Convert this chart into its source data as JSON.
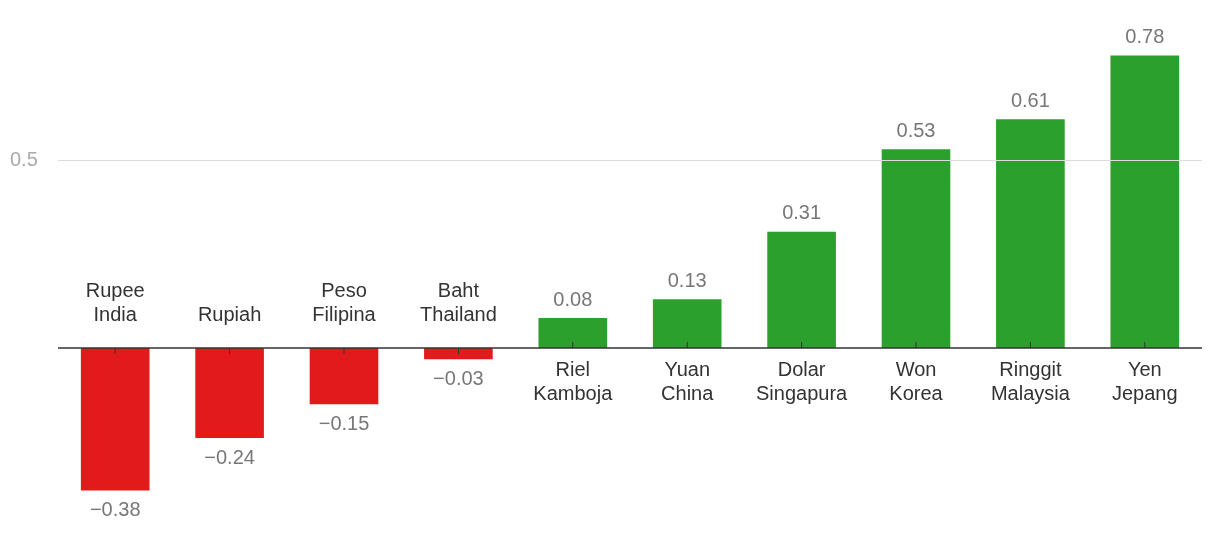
{
  "chart_data": {
    "type": "bar",
    "categories": [
      "Rupee India",
      "Rupiah",
      "Peso Filipina",
      "Baht Thailand",
      "Riel Kamboja",
      "Yuan China",
      "Dolar Singapura",
      "Won Korea",
      "Ringgit Malaysia",
      "Yen Jepang"
    ],
    "values": [
      -0.38,
      -0.24,
      -0.15,
      -0.03,
      0.08,
      0.13,
      0.31,
      0.53,
      0.61,
      0.78
    ],
    "colors": [
      "#e31a1c",
      "#e31a1c",
      "#e31a1c",
      "#e31a1c",
      "#2ca02c",
      "#2ca02c",
      "#2ca02c",
      "#2ca02c",
      "#2ca02c",
      "#2ca02c"
    ],
    "value_labels": [
      "−0.38",
      "−0.24",
      "−0.15",
      "−0.03",
      "0.08",
      "0.13",
      "0.31",
      "0.53",
      "0.61",
      "0.78"
    ],
    "ref_lines": [
      {
        "axis": "y",
        "value": 0.5,
        "label": "0.5",
        "color": "#dddddd"
      }
    ],
    "legend": false
  }
}
